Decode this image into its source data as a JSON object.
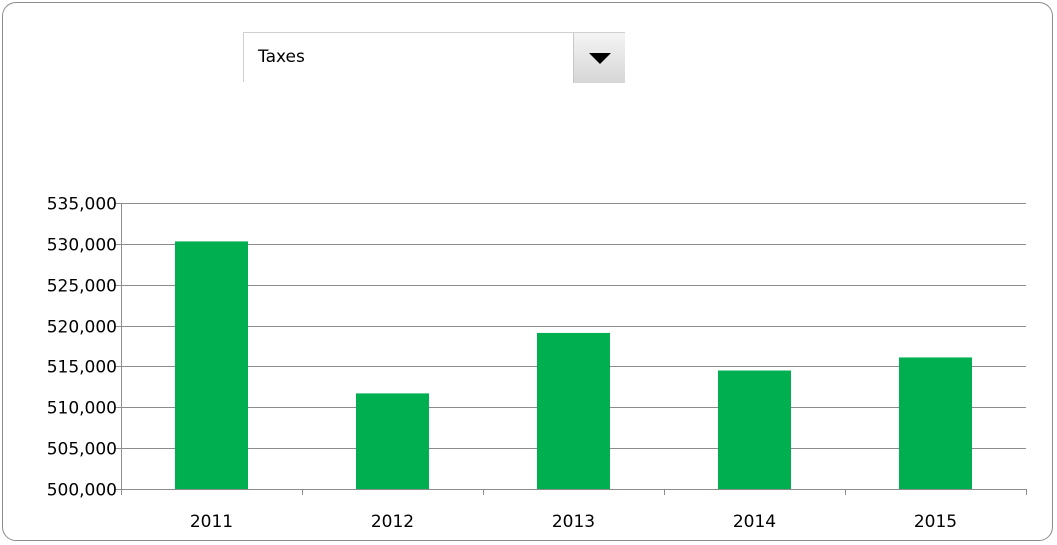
{
  "dropdown": {
    "selected": "Taxes",
    "icon": "triangle-down-icon"
  },
  "colors": {
    "bar": "#00B050",
    "gridline": "#8c8c8c",
    "axis": "#8c8c8c"
  },
  "chart_data": {
    "type": "bar",
    "categories": [
      "2011",
      "2012",
      "2013",
      "2014",
      "2015"
    ],
    "values": [
      530300,
      511700,
      519100,
      514500,
      516100
    ],
    "ylim": [
      500000,
      535000
    ],
    "yticks": [
      500000,
      505000,
      510000,
      515000,
      520000,
      525000,
      530000,
      535000
    ],
    "ytick_labels": [
      "500,000",
      "505,000",
      "510,000",
      "515,000",
      "520,000",
      "525,000",
      "530,000",
      "535,000"
    ],
    "grid": true,
    "legend": "none",
    "title": "",
    "xlabel": "",
    "ylabel": ""
  }
}
